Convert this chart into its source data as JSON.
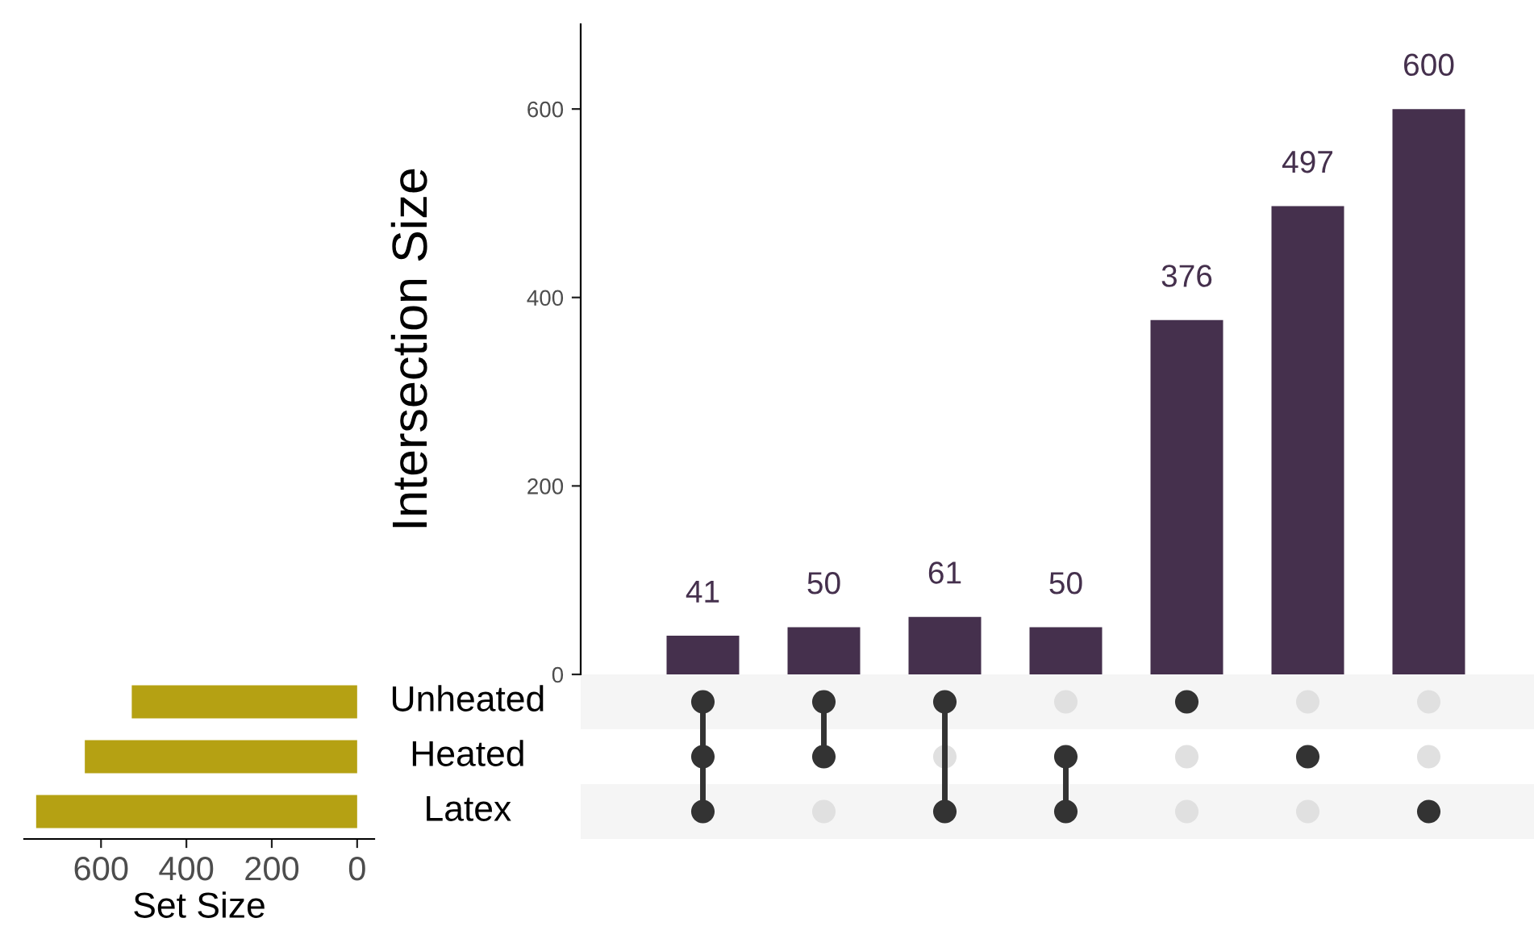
{
  "chart_data": [
    {
      "type": "bar",
      "ylabel": "Intersection Size",
      "categories": [
        null,
        null,
        null,
        null,
        null,
        null,
        null
      ],
      "values": [
        41,
        50,
        61,
        50,
        376,
        497,
        600
      ],
      "color": "#45304d",
      "ylim": [
        0,
        690
      ],
      "yticks": [
        0,
        200,
        400,
        600
      ],
      "data_labels": true,
      "grid": false,
      "tick_labels": "y"
    },
    {
      "type": "bar",
      "orientation": "horizontal",
      "xlabel": "Set Size",
      "categories": [
        "Unheated",
        "Heated",
        "Latex"
      ],
      "values": [
        528,
        638,
        752
      ],
      "color": "#b5a113",
      "xlim": [
        780,
        -40
      ],
      "xticks": [
        600,
        400,
        200,
        0
      ],
      "grid": false
    },
    {
      "type": "other",
      "categories": [
        null,
        null,
        null,
        null,
        null,
        null,
        null
      ],
      "cells": [
        [
          true,
          true,
          true,
          false,
          true,
          false,
          false
        ],
        [
          true,
          true,
          false,
          true,
          false,
          true,
          false
        ],
        [
          true,
          false,
          true,
          true,
          false,
          false,
          true
        ]
      ],
      "color": "#333333"
    }
  ]
}
